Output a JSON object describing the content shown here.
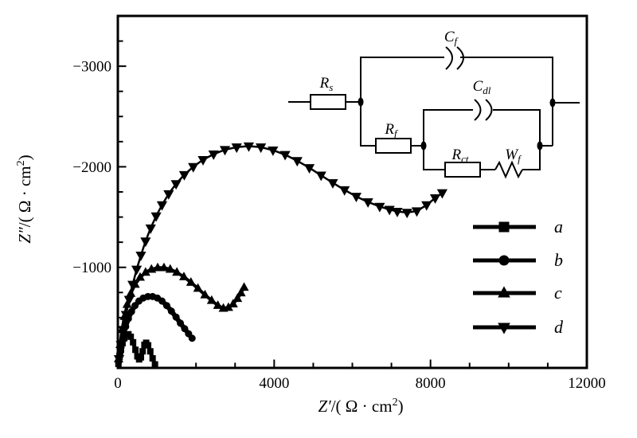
{
  "figure": {
    "background": "#ffffff",
    "ink": "#000000"
  },
  "axes": {
    "x": {
      "label_z": "Z′",
      "label_mid": "/( Ω · cm",
      "label_sup": "2",
      "label_end": ")",
      "range": [
        0,
        12000
      ],
      "minor_step": 1000,
      "major_ticks": [
        {
          "value": 0,
          "label": "0"
        },
        {
          "value": 4000,
          "label": "4000"
        },
        {
          "value": 8000,
          "label": "8000"
        },
        {
          "value": 12000,
          "label": "12000"
        }
      ]
    },
    "y": {
      "label_z": "Z″",
      "label_mid": "/( Ω · cm",
      "label_sup": "2",
      "label_end": ")",
      "range": [
        0,
        -3500
      ],
      "minor_step": 250,
      "major_ticks": [
        {
          "value": -1000,
          "label": "−1000"
        },
        {
          "value": -2000,
          "label": "−2000"
        },
        {
          "value": -3000,
          "label": "−3000"
        }
      ]
    }
  },
  "legend": {
    "items": [
      {
        "label": "a",
        "marker": "square"
      },
      {
        "label": "b",
        "marker": "circle"
      },
      {
        "label": "c",
        "marker": "triangle-up"
      },
      {
        "label": "d",
        "marker": "triangle-down"
      }
    ]
  },
  "circuit": {
    "rs": {
      "main": "R",
      "sub": "s"
    },
    "cf": {
      "main": "C",
      "sub": "f"
    },
    "cdl": {
      "main": "C",
      "sub": "dl"
    },
    "rf": {
      "main": "R",
      "sub": "f"
    },
    "rct": {
      "main": "R",
      "sub": "ct"
    },
    "wf": {
      "main": "W",
      "sub": "f"
    }
  },
  "chart_data": {
    "type": "scatter",
    "title": "",
    "xlabel": "Z′/(Ω · cm²)",
    "ylabel": "Z″/(Ω · cm²)",
    "xlim": [
      0,
      12000
    ],
    "ylim": [
      0,
      -3500
    ],
    "grid": false,
    "legend_position": "right-middle",
    "series": [
      {
        "name": "a",
        "marker": "square",
        "color": "#000000",
        "x": [
          15,
          45,
          80,
          120,
          165,
          215,
          270,
          330,
          390,
          450,
          500,
          545,
          590,
          635,
          680,
          725,
          775,
          830,
          890,
          950
        ],
        "y": [
          -40,
          -110,
          -180,
          -245,
          -295,
          -330,
          -335,
          -310,
          -255,
          -180,
          -115,
          -85,
          -105,
          -165,
          -230,
          -250,
          -225,
          -165,
          -95,
          -35
        ]
      },
      {
        "name": "b",
        "marker": "circle",
        "color": "#000000",
        "x": [
          20,
          50,
          90,
          140,
          200,
          270,
          350,
          440,
          540,
          650,
          770,
          890,
          1010,
          1130,
          1250,
          1370,
          1490,
          1600,
          1710,
          1810,
          1900
        ],
        "y": [
          -60,
          -140,
          -230,
          -320,
          -410,
          -490,
          -560,
          -620,
          -665,
          -695,
          -710,
          -710,
          -695,
          -665,
          -620,
          -565,
          -505,
          -445,
          -390,
          -340,
          -295
        ]
      },
      {
        "name": "c",
        "marker": "triangle-up",
        "color": "#000000",
        "x": [
          20,
          60,
          110,
          170,
          240,
          330,
          440,
          570,
          710,
          860,
          1020,
          1180,
          1340,
          1510,
          1690,
          1870,
          2050,
          2230,
          2400,
          2560,
          2700,
          2830,
          2950,
          3060,
          3150,
          3230
        ],
        "y": [
          -90,
          -230,
          -380,
          -510,
          -630,
          -740,
          -830,
          -900,
          -950,
          -980,
          -995,
          -995,
          -980,
          -950,
          -905,
          -850,
          -790,
          -725,
          -670,
          -620,
          -592,
          -600,
          -635,
          -690,
          -745,
          -800
        ]
      },
      {
        "name": "d",
        "marker": "triangle-down",
        "color": "#000000",
        "x": [
          30,
          80,
          140,
          210,
          290,
          380,
          480,
          590,
          710,
          840,
          980,
          1130,
          1300,
          1490,
          1700,
          1930,
          2180,
          2450,
          2740,
          3040,
          3350,
          3660,
          3970,
          4280,
          4590,
          4900,
          5200,
          5500,
          5800,
          6100,
          6400,
          6700,
          6950,
          7150,
          7400,
          7650,
          7900,
          8120,
          8300
        ],
        "y": [
          -90,
          -230,
          -380,
          -530,
          -680,
          -830,
          -980,
          -1120,
          -1260,
          -1390,
          -1510,
          -1620,
          -1730,
          -1830,
          -1920,
          -2000,
          -2070,
          -2125,
          -2170,
          -2195,
          -2205,
          -2195,
          -2165,
          -2120,
          -2060,
          -1990,
          -1915,
          -1840,
          -1770,
          -1705,
          -1650,
          -1605,
          -1575,
          -1555,
          -1545,
          -1560,
          -1620,
          -1690,
          -1740
        ]
      }
    ]
  }
}
